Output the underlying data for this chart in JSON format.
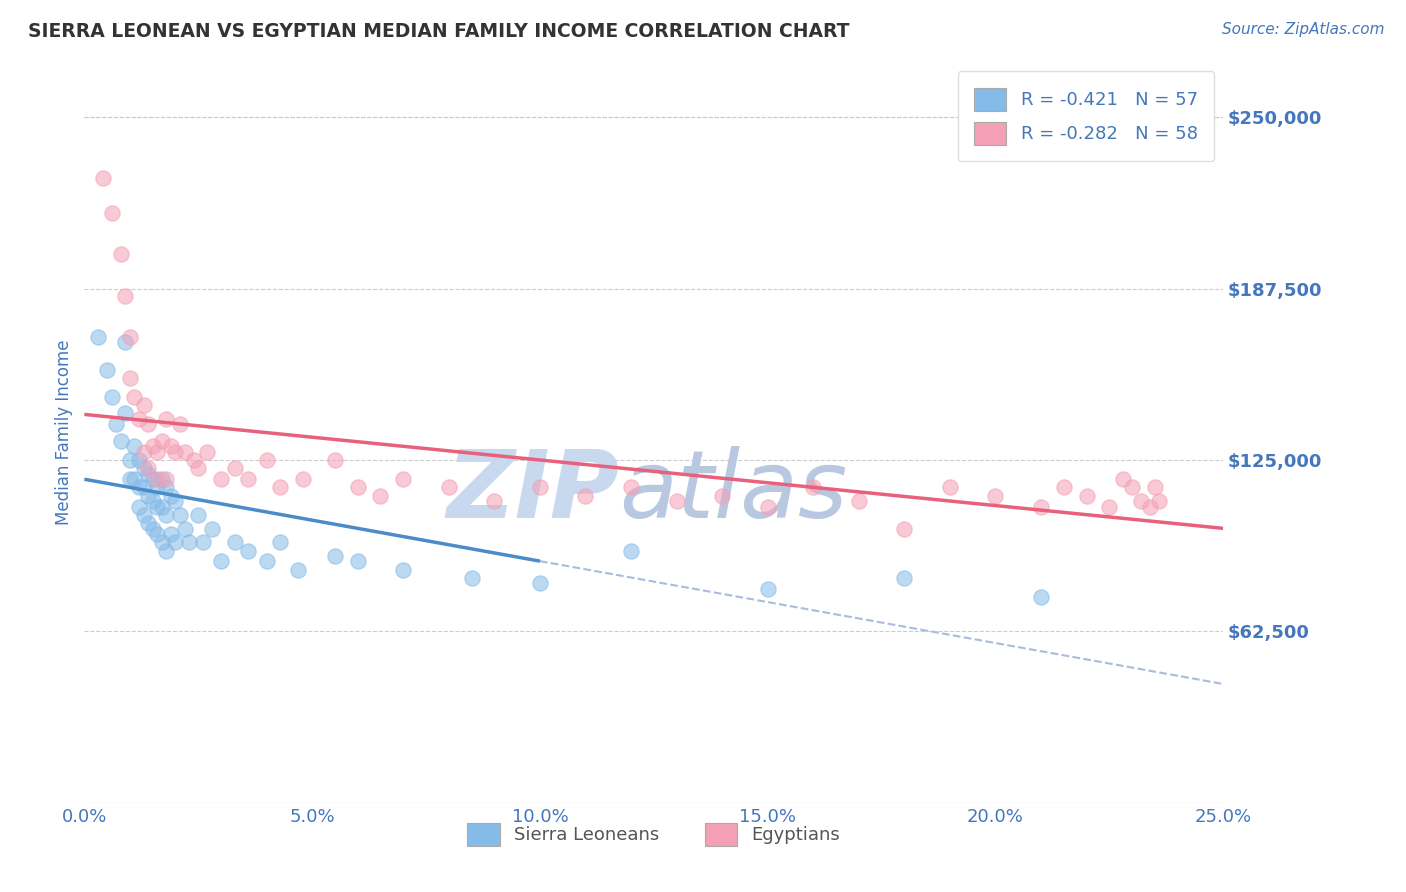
{
  "title": "SIERRA LEONEAN VS EGYPTIAN MEDIAN FAMILY INCOME CORRELATION CHART",
  "source": "Source: ZipAtlas.com",
  "ylabel": "Median Family Income",
  "xlim": [
    0.0,
    0.25
  ],
  "ylim": [
    0,
    270000
  ],
  "yticks": [
    0,
    62500,
    125000,
    187500,
    250000
  ],
  "ytick_labels": [
    "",
    "$62,500",
    "$125,000",
    "$187,500",
    "$250,000"
  ],
  "xticks": [
    0.0,
    0.05,
    0.1,
    0.15,
    0.2,
    0.25
  ],
  "xtick_labels": [
    "0.0%",
    "5.0%",
    "10.0%",
    "15.0%",
    "20.0%",
    "25.0%"
  ],
  "blue_color": "#85BBE8",
  "pink_color": "#F4A0B5",
  "blue_line_color": "#4A8CC8",
  "pink_line_color": "#E8607A",
  "dashed_line_color": "#AABBDD",
  "r_blue": -0.421,
  "n_blue": 57,
  "r_pink": -0.282,
  "n_pink": 58,
  "watermark": "ZIPAtlas",
  "watermark_color": "#D8E4F0",
  "background_color": "#FFFFFF",
  "grid_color": "#CCCCCC",
  "title_color": "#333333",
  "tick_label_color": "#4477BB",
  "legend_label_blue": "Sierra Leoneans",
  "legend_label_pink": "Egyptians",
  "blue_scatter_x": [
    0.003,
    0.005,
    0.006,
    0.007,
    0.008,
    0.009,
    0.009,
    0.01,
    0.01,
    0.011,
    0.011,
    0.012,
    0.012,
    0.012,
    0.013,
    0.013,
    0.013,
    0.014,
    0.014,
    0.014,
    0.015,
    0.015,
    0.015,
    0.016,
    0.016,
    0.016,
    0.017,
    0.017,
    0.017,
    0.018,
    0.018,
    0.018,
    0.019,
    0.019,
    0.02,
    0.02,
    0.021,
    0.022,
    0.023,
    0.025,
    0.026,
    0.028,
    0.03,
    0.033,
    0.036,
    0.04,
    0.043,
    0.047,
    0.055,
    0.06,
    0.07,
    0.085,
    0.1,
    0.12,
    0.15,
    0.18,
    0.21
  ],
  "blue_scatter_y": [
    170000,
    158000,
    148000,
    138000,
    132000,
    168000,
    142000,
    125000,
    118000,
    130000,
    118000,
    125000,
    115000,
    108000,
    122000,
    115000,
    105000,
    120000,
    112000,
    102000,
    118000,
    110000,
    100000,
    115000,
    108000,
    98000,
    118000,
    108000,
    95000,
    115000,
    105000,
    92000,
    112000,
    98000,
    110000,
    95000,
    105000,
    100000,
    95000,
    105000,
    95000,
    100000,
    88000,
    95000,
    92000,
    88000,
    95000,
    85000,
    90000,
    88000,
    85000,
    82000,
    80000,
    92000,
    78000,
    82000,
    75000
  ],
  "pink_scatter_x": [
    0.004,
    0.006,
    0.008,
    0.009,
    0.01,
    0.01,
    0.011,
    0.012,
    0.013,
    0.013,
    0.014,
    0.014,
    0.015,
    0.016,
    0.016,
    0.017,
    0.018,
    0.018,
    0.019,
    0.02,
    0.021,
    0.022,
    0.024,
    0.025,
    0.027,
    0.03,
    0.033,
    0.036,
    0.04,
    0.043,
    0.048,
    0.055,
    0.06,
    0.065,
    0.07,
    0.08,
    0.09,
    0.1,
    0.11,
    0.12,
    0.13,
    0.14,
    0.15,
    0.16,
    0.17,
    0.18,
    0.19,
    0.2,
    0.21,
    0.215,
    0.22,
    0.225,
    0.228,
    0.23,
    0.232,
    0.234,
    0.235,
    0.236
  ],
  "pink_scatter_y": [
    228000,
    215000,
    200000,
    185000,
    170000,
    155000,
    148000,
    140000,
    145000,
    128000,
    138000,
    122000,
    130000,
    128000,
    118000,
    132000,
    140000,
    118000,
    130000,
    128000,
    138000,
    128000,
    125000,
    122000,
    128000,
    118000,
    122000,
    118000,
    125000,
    115000,
    118000,
    125000,
    115000,
    112000,
    118000,
    115000,
    110000,
    115000,
    112000,
    115000,
    110000,
    112000,
    108000,
    115000,
    110000,
    100000,
    115000,
    112000,
    108000,
    115000,
    112000,
    108000,
    118000,
    115000,
    110000,
    108000,
    115000,
    110000
  ]
}
